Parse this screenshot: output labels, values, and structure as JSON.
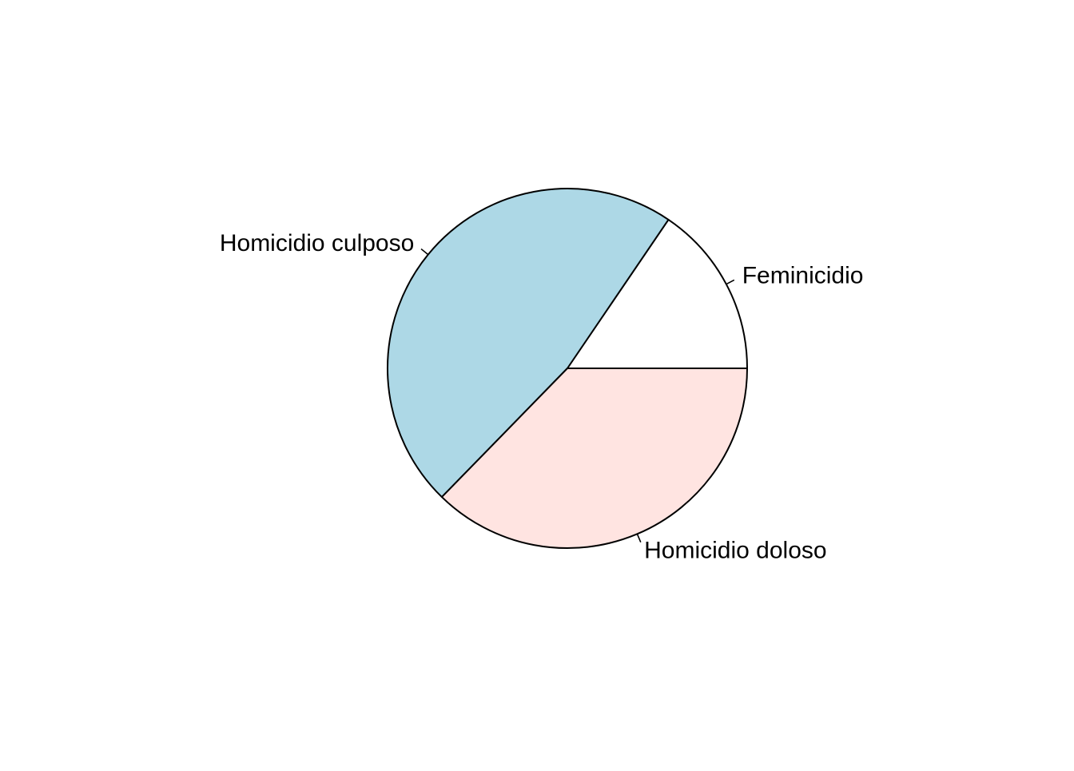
{
  "chart_data": {
    "type": "pie",
    "title": "",
    "clockwise": false,
    "start_angle_deg": 0,
    "slices": [
      {
        "label": "Feminicidio",
        "value": 15.5,
        "color": "#FFFFFF"
      },
      {
        "label": "Homicidio culposo",
        "value": 47.2,
        "color": "#ADD8E6"
      },
      {
        "label": "Homicidio doloso",
        "value": 37.3,
        "color": "#FFE4E1"
      }
    ],
    "border_color": "#000000"
  }
}
